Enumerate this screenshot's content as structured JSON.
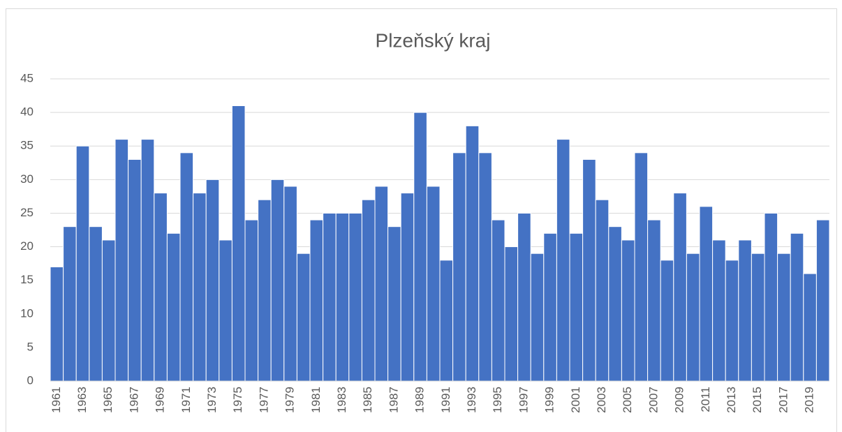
{
  "chart_data": {
    "type": "bar",
    "title": "Plzeňský kraj",
    "categories": [
      "1961",
      null,
      "1963",
      null,
      "1965",
      null,
      "1967",
      null,
      "1969",
      null,
      "1971",
      null,
      "1973",
      null,
      "1975",
      null,
      "1977",
      null,
      "1979",
      null,
      "1981",
      null,
      "1983",
      null,
      "1985",
      null,
      "1987",
      null,
      "1989",
      null,
      "1991",
      null,
      "1993",
      null,
      "1995",
      null,
      "1997",
      null,
      "1999",
      null,
      "2001",
      null,
      "2003",
      null,
      "2005",
      null,
      "2007",
      null,
      "2009",
      null,
      "2011",
      null,
      "2013",
      null,
      "2015",
      null,
      "2017",
      null,
      "2019",
      null
    ],
    "values": [
      17,
      23,
      35,
      23,
      21,
      36,
      33,
      36,
      28,
      22,
      34,
      28,
      30,
      21,
      41,
      24,
      27,
      30,
      29,
      19,
      24,
      25,
      25,
      25,
      27,
      29,
      23,
      28,
      40,
      29,
      18,
      34,
      38,
      34,
      24,
      20,
      25,
      19,
      22,
      36,
      22,
      33,
      27,
      23,
      21,
      34,
      24,
      18,
      28,
      19,
      26,
      21,
      18,
      21,
      19,
      25,
      19,
      22,
      16,
      24
    ],
    "color": "#4472c4",
    "ylim": [
      0,
      45
    ],
    "yticks": [
      0,
      5,
      10,
      15,
      20,
      25,
      30,
      35,
      40,
      45
    ],
    "grid": true
  }
}
